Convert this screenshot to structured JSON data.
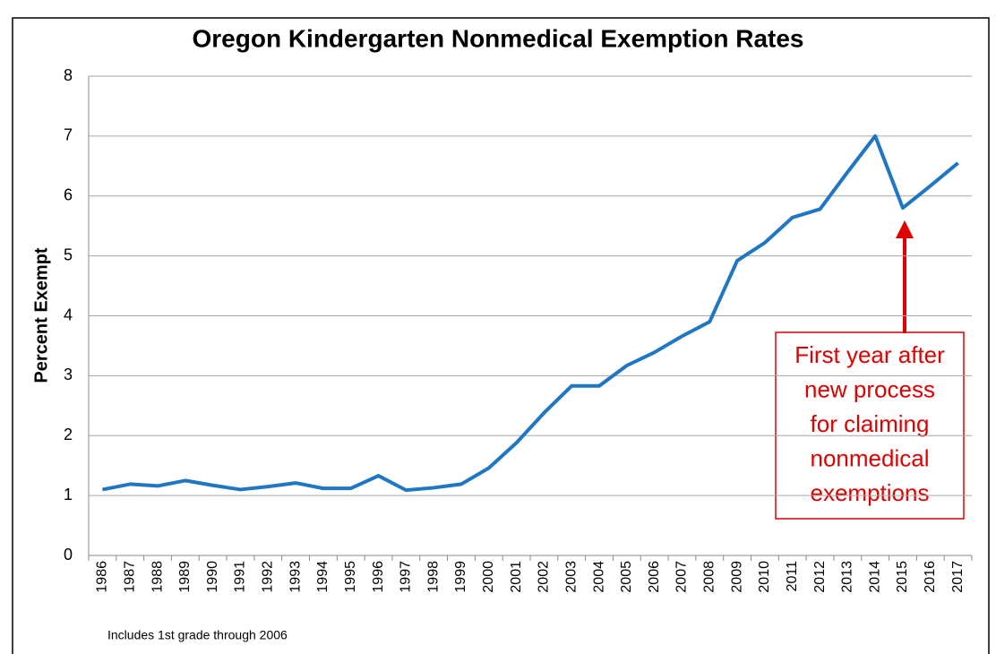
{
  "chart_data": {
    "type": "line",
    "title": "Oregon Kindergarten Nonmedical Exemption Rates",
    "ylabel": "Percent Exempt",
    "note": "Includes 1st grade through 2006",
    "annotation": [
      "First year after",
      "new process",
      "for claiming",
      "nonmedical",
      "exemptions"
    ],
    "categories": [
      "1986",
      "1987",
      "1988",
      "1989",
      "1990",
      "1991",
      "1992",
      "1993",
      "1994",
      "1995",
      "1996",
      "1997",
      "1998",
      "1999",
      "2000",
      "2001",
      "2002",
      "2003",
      "2004",
      "2005",
      "2006",
      "2007",
      "2008",
      "2009",
      "2010",
      "2011",
      "2012",
      "2013",
      "2014",
      "2015",
      "2016",
      "2017"
    ],
    "series": [
      {
        "name": "Percent Exempt",
        "color": "#1f77c4",
        "values": [
          1.1,
          1.19,
          1.16,
          1.25,
          1.17,
          1.1,
          1.15,
          1.21,
          1.12,
          1.12,
          1.33,
          1.09,
          1.13,
          1.19,
          1.46,
          1.88,
          2.38,
          2.83,
          2.83,
          3.17,
          3.39,
          3.66,
          3.9,
          4.92,
          5.22,
          5.64,
          5.78,
          6.4,
          7.0,
          5.8,
          6.17,
          6.55
        ]
      }
    ],
    "ylim": [
      0,
      8
    ],
    "yticks": [
      0,
      1,
      2,
      3,
      4,
      5,
      6,
      7,
      8
    ],
    "grid": true
  }
}
